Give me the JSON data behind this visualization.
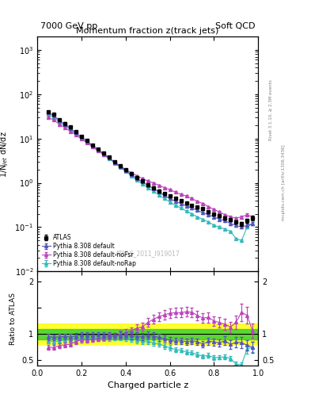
{
  "title_upper": "Momentum fraction z(track jets)",
  "header_left": "7000 GeV pp",
  "header_right": "Soft QCD",
  "ylabel_main": "1/N$_{jet}$ dN/dz",
  "ylabel_ratio": "Ratio to ATLAS",
  "xlabel": "Charged particle z",
  "right_label_top": "Rivet 3.1.10, ≥ 2.3M events",
  "right_label_bottom": "mcplots.cern.ch [arXiv:1306.3436]",
  "watermark": "ATLAS_2011_I919017",
  "legend": [
    "ATLAS",
    "Pythia 8.308 default",
    "Pythia 8.308 default-noFsr",
    "Pythia 8.308 default-noRap"
  ],
  "atlas_x": [
    0.05,
    0.075,
    0.1,
    0.125,
    0.15,
    0.175,
    0.2,
    0.225,
    0.25,
    0.275,
    0.3,
    0.325,
    0.35,
    0.375,
    0.4,
    0.425,
    0.45,
    0.475,
    0.5,
    0.525,
    0.55,
    0.575,
    0.6,
    0.625,
    0.65,
    0.675,
    0.7,
    0.725,
    0.75,
    0.775,
    0.8,
    0.825,
    0.85,
    0.875,
    0.9,
    0.925,
    0.95,
    0.975
  ],
  "atlas_y": [
    40.0,
    35.0,
    27.0,
    22.0,
    18.0,
    14.0,
    11.0,
    9.0,
    7.2,
    5.8,
    4.7,
    3.8,
    3.0,
    2.4,
    1.95,
    1.6,
    1.3,
    1.1,
    0.9,
    0.78,
    0.66,
    0.57,
    0.5,
    0.44,
    0.39,
    0.35,
    0.31,
    0.28,
    0.26,
    0.22,
    0.2,
    0.18,
    0.16,
    0.15,
    0.13,
    0.12,
    0.14,
    0.16
  ],
  "atlas_yerr": [
    2.0,
    1.5,
    1.2,
    1.0,
    0.8,
    0.6,
    0.5,
    0.4,
    0.3,
    0.25,
    0.2,
    0.17,
    0.14,
    0.12,
    0.1,
    0.08,
    0.07,
    0.06,
    0.05,
    0.04,
    0.035,
    0.03,
    0.025,
    0.022,
    0.019,
    0.017,
    0.016,
    0.015,
    0.014,
    0.013,
    0.012,
    0.011,
    0.012,
    0.011,
    0.011,
    0.012,
    0.014,
    0.018
  ],
  "py_default_x": [
    0.05,
    0.075,
    0.1,
    0.125,
    0.15,
    0.175,
    0.2,
    0.225,
    0.25,
    0.275,
    0.3,
    0.325,
    0.35,
    0.375,
    0.4,
    0.425,
    0.45,
    0.475,
    0.5,
    0.525,
    0.55,
    0.575,
    0.6,
    0.625,
    0.65,
    0.675,
    0.7,
    0.725,
    0.75,
    0.775,
    0.8,
    0.825,
    0.85,
    0.875,
    0.9,
    0.925,
    0.95,
    0.975
  ],
  "py_default_y": [
    38.0,
    33.0,
    25.5,
    21.0,
    17.0,
    13.5,
    10.8,
    8.8,
    7.0,
    5.7,
    4.6,
    3.7,
    2.9,
    2.35,
    1.9,
    1.55,
    1.25,
    1.05,
    0.88,
    0.75,
    0.62,
    0.52,
    0.44,
    0.38,
    0.34,
    0.3,
    0.27,
    0.24,
    0.21,
    0.19,
    0.17,
    0.15,
    0.14,
    0.12,
    0.11,
    0.1,
    0.11,
    0.12
  ],
  "py_default_yerr": [
    1.5,
    1.2,
    1.0,
    0.8,
    0.7,
    0.5,
    0.4,
    0.35,
    0.28,
    0.23,
    0.18,
    0.15,
    0.12,
    0.1,
    0.08,
    0.07,
    0.06,
    0.05,
    0.04,
    0.035,
    0.03,
    0.025,
    0.02,
    0.018,
    0.016,
    0.014,
    0.013,
    0.012,
    0.011,
    0.01,
    0.009,
    0.009,
    0.009,
    0.008,
    0.008,
    0.008,
    0.009,
    0.01
  ],
  "py_nofsr_x": [
    0.05,
    0.075,
    0.1,
    0.125,
    0.15,
    0.175,
    0.2,
    0.225,
    0.25,
    0.275,
    0.3,
    0.325,
    0.35,
    0.375,
    0.4,
    0.425,
    0.45,
    0.475,
    0.5,
    0.525,
    0.55,
    0.575,
    0.6,
    0.625,
    0.65,
    0.675,
    0.7,
    0.725,
    0.75,
    0.775,
    0.8,
    0.825,
    0.85,
    0.875,
    0.9,
    0.925,
    0.95,
    0.975
  ],
  "py_nofsr_y": [
    30.0,
    26.0,
    21.0,
    17.5,
    14.5,
    12.0,
    9.8,
    8.0,
    6.5,
    5.3,
    4.4,
    3.6,
    2.9,
    2.4,
    2.0,
    1.7,
    1.45,
    1.25,
    1.1,
    1.0,
    0.88,
    0.78,
    0.7,
    0.62,
    0.55,
    0.5,
    0.44,
    0.38,
    0.34,
    0.29,
    0.25,
    0.22,
    0.19,
    0.17,
    0.16,
    0.17,
    0.19,
    0.17
  ],
  "py_nofsr_yerr": [
    1.2,
    1.0,
    0.8,
    0.7,
    0.6,
    0.5,
    0.4,
    0.32,
    0.26,
    0.21,
    0.17,
    0.14,
    0.12,
    0.1,
    0.08,
    0.07,
    0.06,
    0.05,
    0.045,
    0.04,
    0.035,
    0.031,
    0.028,
    0.025,
    0.022,
    0.02,
    0.018,
    0.016,
    0.014,
    0.013,
    0.012,
    0.011,
    0.01,
    0.01,
    0.01,
    0.011,
    0.012,
    0.011
  ],
  "py_norap_x": [
    0.05,
    0.075,
    0.1,
    0.125,
    0.15,
    0.175,
    0.2,
    0.225,
    0.25,
    0.275,
    0.3,
    0.325,
    0.35,
    0.375,
    0.4,
    0.425,
    0.45,
    0.475,
    0.5,
    0.525,
    0.55,
    0.575,
    0.6,
    0.625,
    0.65,
    0.675,
    0.7,
    0.725,
    0.75,
    0.775,
    0.8,
    0.825,
    0.85,
    0.875,
    0.9,
    0.925,
    0.95,
    0.975
  ],
  "py_norap_y": [
    35.0,
    30.0,
    23.5,
    19.5,
    16.0,
    12.5,
    10.0,
    8.2,
    6.6,
    5.3,
    4.3,
    3.5,
    2.8,
    2.25,
    1.8,
    1.45,
    1.15,
    0.95,
    0.78,
    0.65,
    0.54,
    0.44,
    0.37,
    0.31,
    0.27,
    0.23,
    0.2,
    0.17,
    0.15,
    0.13,
    0.11,
    0.1,
    0.09,
    0.08,
    0.055,
    0.05,
    0.1,
    0.12
  ],
  "py_norap_yerr": [
    1.4,
    1.2,
    0.95,
    0.78,
    0.65,
    0.5,
    0.4,
    0.33,
    0.26,
    0.21,
    0.17,
    0.14,
    0.11,
    0.09,
    0.073,
    0.059,
    0.047,
    0.039,
    0.032,
    0.027,
    0.022,
    0.018,
    0.015,
    0.013,
    0.011,
    0.0095,
    0.0082,
    0.007,
    0.0062,
    0.0055,
    0.0047,
    0.0045,
    0.0042,
    0.004,
    0.003,
    0.003,
    0.006,
    0.008
  ],
  "color_atlas": "#000000",
  "color_default": "#5555bb",
  "color_nofsr": "#bb44bb",
  "color_norap": "#33bbbb",
  "band_green_lo": 0.9,
  "band_green_hi": 1.1,
  "band_yellow_lo": 0.8,
  "band_yellow_hi": 1.2,
  "ylim_main": [
    0.01,
    2000
  ],
  "ylim_ratio": [
    0.4,
    2.2
  ],
  "xlim": [
    0.0,
    1.0
  ]
}
